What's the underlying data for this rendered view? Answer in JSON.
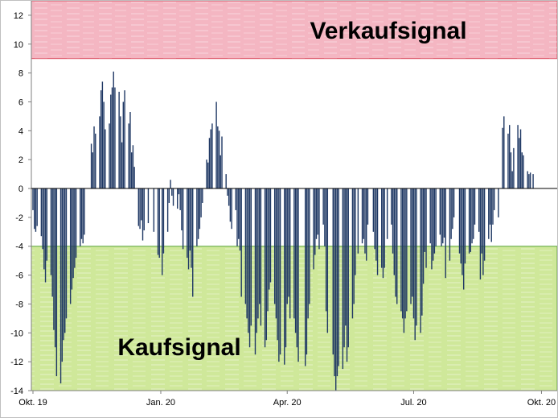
{
  "chart_data": {
    "type": "bar",
    "x_start": "2019-10-01",
    "x_end": "2020-10-10",
    "ylim": [
      -14,
      13
    ],
    "y_ticks": [
      -14,
      -12,
      -10,
      -8,
      -6,
      -4,
      -2,
      0,
      2,
      4,
      6,
      8,
      10,
      12
    ],
    "x_ticks": [
      {
        "date": "2019-10-01",
        "label": "Okt. 19"
      },
      {
        "date": "2020-01-01",
        "label": "Jan. 20"
      },
      {
        "date": "2020-04-01",
        "label": "Apr. 20"
      },
      {
        "date": "2020-07-01",
        "label": "Jul. 20"
      },
      {
        "date": "2020-10-01",
        "label": "Okt. 20"
      }
    ],
    "zones": [
      {
        "label": "Verkaufsignal",
        "from": 9,
        "to": 13,
        "color": "#f4b6c2",
        "border": "#d9485b"
      },
      {
        "label": "Kaufsignal",
        "from": -14,
        "to": -4,
        "color": "#cfe89a",
        "border": "#5aa63a"
      }
    ],
    "bar_color": "#1f3864",
    "grid": false,
    "points": [
      [
        "2019-10-01",
        -1.5
      ],
      [
        "2019-10-02",
        -2.8
      ],
      [
        "2019-10-03",
        -3.0
      ],
      [
        "2019-10-04",
        -2.6
      ],
      [
        "2019-10-07",
        -3.3
      ],
      [
        "2019-10-08",
        -4.2
      ],
      [
        "2019-10-09",
        -5.6
      ],
      [
        "2019-10-10",
        -6.5
      ],
      [
        "2019-10-11",
        -5.0
      ],
      [
        "2019-10-14",
        -6.0
      ],
      [
        "2019-10-15",
        -7.5
      ],
      [
        "2019-10-16",
        -9.8
      ],
      [
        "2019-10-17",
        -11.0
      ],
      [
        "2019-10-18",
        -13.0
      ],
      [
        "2019-10-21",
        -13.5
      ],
      [
        "2019-10-22",
        -12.0
      ],
      [
        "2019-10-23",
        -10.5
      ],
      [
        "2019-10-24",
        -10.0
      ],
      [
        "2019-10-25",
        -9.0
      ],
      [
        "2019-10-28",
        -8.0
      ],
      [
        "2019-10-29",
        -7.0
      ],
      [
        "2019-10-30",
        -6.2
      ],
      [
        "2019-10-31",
        -5.5
      ],
      [
        "2019-11-01",
        -4.8
      ],
      [
        "2019-11-04",
        -4.0
      ],
      [
        "2019-11-05",
        -3.5
      ],
      [
        "2019-11-06",
        -3.8
      ],
      [
        "2019-11-07",
        -3.2
      ],
      [
        "2019-11-12",
        3.1
      ],
      [
        "2019-11-13",
        2.5
      ],
      [
        "2019-11-14",
        4.3
      ],
      [
        "2019-11-15",
        3.8
      ],
      [
        "2019-11-18",
        5.0
      ],
      [
        "2019-11-19",
        6.8
      ],
      [
        "2019-11-20",
        7.4
      ],
      [
        "2019-11-21",
        6.0
      ],
      [
        "2019-11-22",
        4.1
      ],
      [
        "2019-11-25",
        4.5
      ],
      [
        "2019-11-26",
        6.5
      ],
      [
        "2019-11-27",
        7.0
      ],
      [
        "2019-11-28",
        8.1
      ],
      [
        "2019-11-29",
        7.0
      ],
      [
        "2019-12-02",
        6.7
      ],
      [
        "2019-12-03",
        5.0
      ],
      [
        "2019-12-04",
        3.2
      ],
      [
        "2019-12-05",
        6.0
      ],
      [
        "2019-12-06",
        6.8
      ],
      [
        "2019-12-09",
        4.5
      ],
      [
        "2019-12-10",
        5.3
      ],
      [
        "2019-12-11",
        2.5
      ],
      [
        "2019-12-12",
        3.0
      ],
      [
        "2019-12-13",
        1.5
      ],
      [
        "2019-12-16",
        -2.6
      ],
      [
        "2019-12-17",
        -2.8
      ],
      [
        "2019-12-18",
        -2.2
      ],
      [
        "2019-12-19",
        -3.6
      ],
      [
        "2019-12-20",
        -2.9
      ],
      [
        "2019-12-23",
        -2.4
      ],
      [
        "2019-12-27",
        -3.0
      ],
      [
        "2019-12-30",
        -4.6
      ],
      [
        "2019-12-31",
        -4.8
      ],
      [
        "2020-01-02",
        -6.0
      ],
      [
        "2020-01-03",
        -4.5
      ],
      [
        "2020-01-06",
        -3.0
      ],
      [
        "2020-01-07",
        -1.0
      ],
      [
        "2020-01-08",
        0.6
      ],
      [
        "2020-01-09",
        -0.5
      ],
      [
        "2020-01-10",
        -1.2
      ],
      [
        "2020-01-13",
        -1.4
      ],
      [
        "2020-01-14",
        -0.4
      ],
      [
        "2020-01-15",
        -1.5
      ],
      [
        "2020-01-16",
        -2.9
      ],
      [
        "2020-01-17",
        -4.2
      ],
      [
        "2020-01-20",
        -4.8
      ],
      [
        "2020-01-21",
        -5.6
      ],
      [
        "2020-01-22",
        -4.3
      ],
      [
        "2020-01-23",
        -5.5
      ],
      [
        "2020-01-24",
        -7.5
      ],
      [
        "2020-01-27",
        -4.0
      ],
      [
        "2020-01-28",
        -3.5
      ],
      [
        "2020-01-29",
        -2.8
      ],
      [
        "2020-01-30",
        -2.0
      ],
      [
        "2020-01-31",
        -1.0
      ],
      [
        "2020-02-03",
        2.0
      ],
      [
        "2020-02-04",
        1.8
      ],
      [
        "2020-02-05",
        3.5
      ],
      [
        "2020-02-06",
        4.1
      ],
      [
        "2020-02-07",
        4.5
      ],
      [
        "2020-02-10",
        6.0
      ],
      [
        "2020-02-11",
        4.3
      ],
      [
        "2020-02-12",
        4.0
      ],
      [
        "2020-02-13",
        2.3
      ],
      [
        "2020-02-14",
        3.6
      ],
      [
        "2020-02-17",
        1.0
      ],
      [
        "2020-02-18",
        -0.5
      ],
      [
        "2020-02-19",
        -1.2
      ],
      [
        "2020-02-20",
        -2.3
      ],
      [
        "2020-02-21",
        -2.8
      ],
      [
        "2020-02-24",
        -1.5
      ],
      [
        "2020-02-25",
        -4.0
      ],
      [
        "2020-02-26",
        -3.5
      ],
      [
        "2020-02-27",
        -4.3
      ],
      [
        "2020-02-28",
        -7.5
      ],
      [
        "2020-03-02",
        -8.0
      ],
      [
        "2020-03-03",
        -9.0
      ],
      [
        "2020-03-04",
        -10.0
      ],
      [
        "2020-03-05",
        -11.0
      ],
      [
        "2020-03-06",
        -9.5
      ],
      [
        "2020-03-09",
        -11.5
      ],
      [
        "2020-03-10",
        -10.0
      ],
      [
        "2020-03-11",
        -9.0
      ],
      [
        "2020-03-12",
        -8.0
      ],
      [
        "2020-03-13",
        -9.5
      ],
      [
        "2020-03-16",
        -11.0
      ],
      [
        "2020-03-17",
        -10.5
      ],
      [
        "2020-03-18",
        -8.5
      ],
      [
        "2020-03-19",
        -7.0
      ],
      [
        "2020-03-20",
        -6.5
      ],
      [
        "2020-03-23",
        -8.0
      ],
      [
        "2020-03-24",
        -9.0
      ],
      [
        "2020-03-25",
        -10.5
      ],
      [
        "2020-03-26",
        -12.0
      ],
      [
        "2020-03-27",
        -11.5
      ],
      [
        "2020-03-30",
        -12.2
      ],
      [
        "2020-03-31",
        -11.0
      ],
      [
        "2020-04-01",
        -8.0
      ],
      [
        "2020-04-02",
        -7.5
      ],
      [
        "2020-04-03",
        -9.0
      ],
      [
        "2020-04-06",
        -9.0
      ],
      [
        "2020-04-07",
        -10.0
      ],
      [
        "2020-04-08",
        -11.0
      ],
      [
        "2020-04-09",
        -12.0
      ],
      [
        "2020-04-14",
        -12.3
      ],
      [
        "2020-04-15",
        -11.5
      ],
      [
        "2020-04-16",
        -9.0
      ],
      [
        "2020-04-17",
        -8.0
      ],
      [
        "2020-04-20",
        -5.6
      ],
      [
        "2020-04-21",
        -4.6
      ],
      [
        "2020-04-22",
        -3.5
      ],
      [
        "2020-04-23",
        -3.2
      ],
      [
        "2020-04-24",
        -4.2
      ],
      [
        "2020-04-27",
        -2.5
      ],
      [
        "2020-04-28",
        -4.0
      ],
      [
        "2020-04-29",
        -8.5
      ],
      [
        "2020-04-30",
        -10.0
      ],
      [
        "2020-05-04",
        -11.5
      ],
      [
        "2020-05-05",
        -13.0
      ],
      [
        "2020-05-06",
        -14.0
      ],
      [
        "2020-05-07",
        -13.0
      ],
      [
        "2020-05-08",
        -12.3
      ],
      [
        "2020-05-11",
        -12.5
      ],
      [
        "2020-05-12",
        -11.0
      ],
      [
        "2020-05-13",
        -9.5
      ],
      [
        "2020-05-14",
        -12.0
      ],
      [
        "2020-05-15",
        -11.0
      ],
      [
        "2020-05-18",
        -9.0
      ],
      [
        "2020-05-19",
        -8.0
      ],
      [
        "2020-05-20",
        -6.0
      ],
      [
        "2020-05-22",
        -4.5
      ],
      [
        "2020-05-25",
        -3.8
      ],
      [
        "2020-05-26",
        -3.5
      ],
      [
        "2020-05-27",
        -4.5
      ],
      [
        "2020-05-28",
        -5.0
      ],
      [
        "2020-05-29",
        -2.5
      ],
      [
        "2020-06-02",
        -3.0
      ],
      [
        "2020-06-03",
        -4.2
      ],
      [
        "2020-06-04",
        -5.0
      ],
      [
        "2020-06-05",
        -6.0
      ],
      [
        "2020-06-08",
        -5.5
      ],
      [
        "2020-06-09",
        -6.2
      ],
      [
        "2020-06-10",
        -5.5
      ],
      [
        "2020-06-12",
        -3.5
      ],
      [
        "2020-06-15",
        -2.5
      ],
      [
        "2020-06-16",
        -4.5
      ],
      [
        "2020-06-17",
        -6.0
      ],
      [
        "2020-06-18",
        -7.5
      ],
      [
        "2020-06-19",
        -8.0
      ],
      [
        "2020-06-22",
        -8.5
      ],
      [
        "2020-06-23",
        -9.0
      ],
      [
        "2020-06-24",
        -10.0
      ],
      [
        "2020-06-25",
        -9.0
      ],
      [
        "2020-06-26",
        -8.5
      ],
      [
        "2020-06-29",
        -8.0
      ],
      [
        "2020-06-30",
        -7.5
      ],
      [
        "2020-07-01",
        -9.0
      ],
      [
        "2020-07-02",
        -10.5
      ],
      [
        "2020-07-03",
        -9.5
      ],
      [
        "2020-07-06",
        -10.0
      ],
      [
        "2020-07-07",
        -8.8
      ],
      [
        "2020-07-08",
        -6.6
      ],
      [
        "2020-07-09",
        -4.4
      ],
      [
        "2020-07-10",
        -5.5
      ],
      [
        "2020-07-13",
        -3.8
      ],
      [
        "2020-07-14",
        -5.6
      ],
      [
        "2020-07-15",
        -5.0
      ],
      [
        "2020-07-16",
        -4.5
      ],
      [
        "2020-07-17",
        -4.0
      ],
      [
        "2020-07-20",
        -3.2
      ],
      [
        "2020-07-21",
        -4.0
      ],
      [
        "2020-07-22",
        -3.8
      ],
      [
        "2020-07-23",
        -3.4
      ],
      [
        "2020-07-24",
        -6.2
      ],
      [
        "2020-07-27",
        -5.0
      ],
      [
        "2020-07-28",
        -3.5
      ],
      [
        "2020-07-29",
        -2.8
      ],
      [
        "2020-07-30",
        -2.0
      ],
      [
        "2020-08-03",
        -4.5
      ],
      [
        "2020-08-04",
        -5.2
      ],
      [
        "2020-08-05",
        -6.0
      ],
      [
        "2020-08-06",
        -7.0
      ],
      [
        "2020-08-07",
        -5.2
      ],
      [
        "2020-08-10",
        -4.5
      ],
      [
        "2020-08-11",
        -4.4
      ],
      [
        "2020-08-12",
        -3.8
      ],
      [
        "2020-08-13",
        -3.5
      ],
      [
        "2020-08-14",
        -2.5
      ],
      [
        "2020-08-17",
        -3.0
      ],
      [
        "2020-08-18",
        -6.3
      ],
      [
        "2020-08-19",
        -4.5
      ],
      [
        "2020-08-20",
        -6.0
      ],
      [
        "2020-08-21",
        -5.0
      ],
      [
        "2020-08-24",
        -3.5
      ],
      [
        "2020-08-25",
        -2.5
      ],
      [
        "2020-08-26",
        -3.7
      ],
      [
        "2020-08-27",
        -2.5
      ],
      [
        "2020-08-28",
        -1.5
      ],
      [
        "2020-08-31",
        -2.0
      ],
      [
        "2020-09-03",
        4.2
      ],
      [
        "2020-09-04",
        5.0
      ],
      [
        "2020-09-07",
        3.8
      ],
      [
        "2020-09-08",
        4.4
      ],
      [
        "2020-09-09",
        2.5
      ],
      [
        "2020-09-10",
        1.2
      ],
      [
        "2020-09-11",
        2.8
      ],
      [
        "2020-09-14",
        4.4
      ],
      [
        "2020-09-15",
        3.5
      ],
      [
        "2020-09-16",
        4.1
      ],
      [
        "2020-09-17",
        2.5
      ],
      [
        "2020-09-18",
        2.3
      ],
      [
        "2020-09-21",
        1.2
      ],
      [
        "2020-09-22",
        1.0
      ],
      [
        "2020-09-23",
        1.1
      ],
      [
        "2020-09-25",
        1.0
      ]
    ]
  }
}
